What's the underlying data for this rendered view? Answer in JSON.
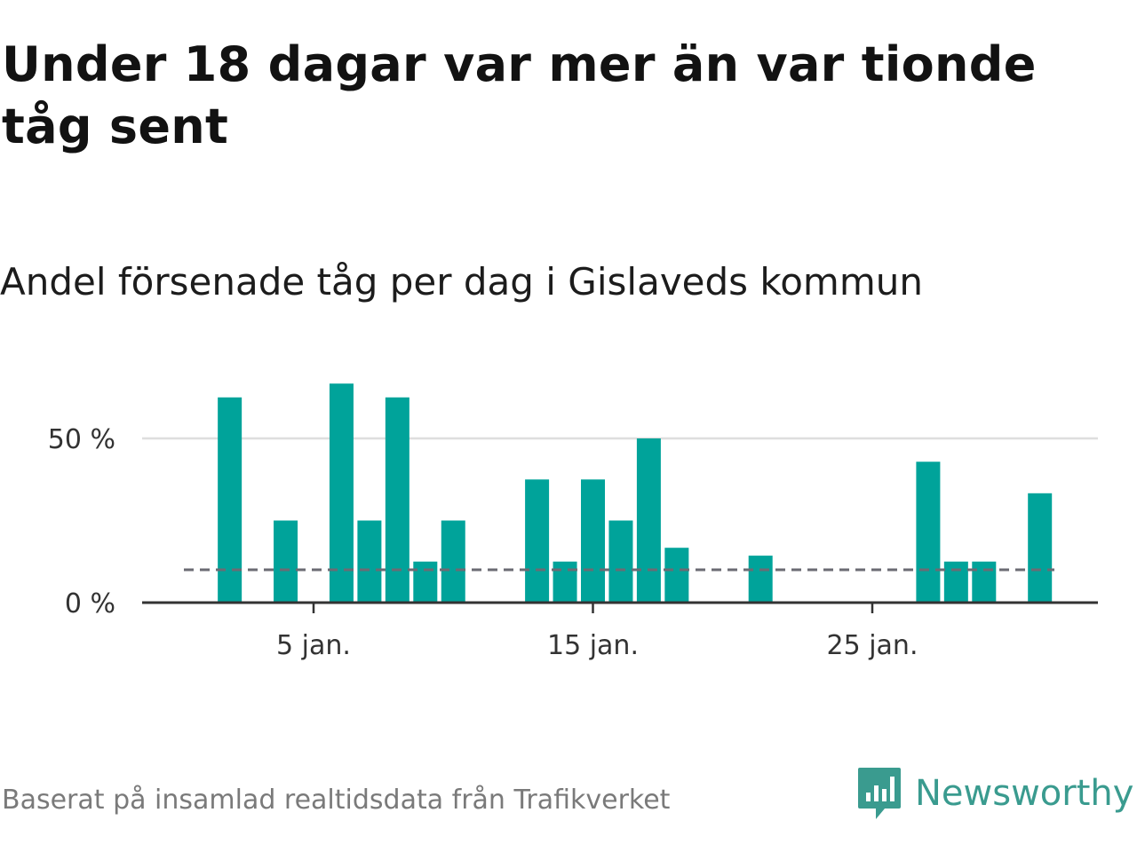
{
  "title": "Under 18 dagar var mer än var tionde tåg sent",
  "subtitle": "Andel försenade tåg per dag i Gislaveds kommun",
  "footer": "Baserat på insamlad realtidsdata från Trafikverket",
  "brand": {
    "name": "Newsworthy",
    "icon": "newsworthy-logo-icon",
    "color": "#3a9b8f"
  },
  "colors": {
    "bar": "#00a39a",
    "reference_line": "#6b6b73",
    "grid": "#dedede",
    "axis": "#333333"
  },
  "chart_data": {
    "type": "bar",
    "x": [
      1,
      2,
      3,
      4,
      5,
      6,
      7,
      8,
      9,
      10,
      11,
      12,
      13,
      14,
      15,
      16,
      17,
      18,
      19,
      20,
      21,
      22,
      23,
      24,
      25,
      26,
      27,
      28,
      29,
      30,
      31
    ],
    "x_unit": "jan.",
    "values": [
      null,
      62.5,
      null,
      25,
      null,
      66.7,
      25,
      62.5,
      12.5,
      25,
      null,
      null,
      37.5,
      12.5,
      37.5,
      25,
      50,
      16.7,
      null,
      null,
      14.3,
      null,
      null,
      null,
      null,
      null,
      42.9,
      12.5,
      12.5,
      null,
      33.3
    ],
    "ylim": [
      0,
      70
    ],
    "yticks": [
      {
        "value": 0,
        "label": "0 %"
      },
      {
        "value": 50,
        "label": "50 %"
      }
    ],
    "xticks": [
      {
        "value": 5,
        "label": "5 jan."
      },
      {
        "value": 15,
        "label": "15 jan."
      },
      {
        "value": 25,
        "label": "25 jan."
      }
    ],
    "reference_line": {
      "value": 10,
      "style": "dashed"
    },
    "grid": true
  }
}
